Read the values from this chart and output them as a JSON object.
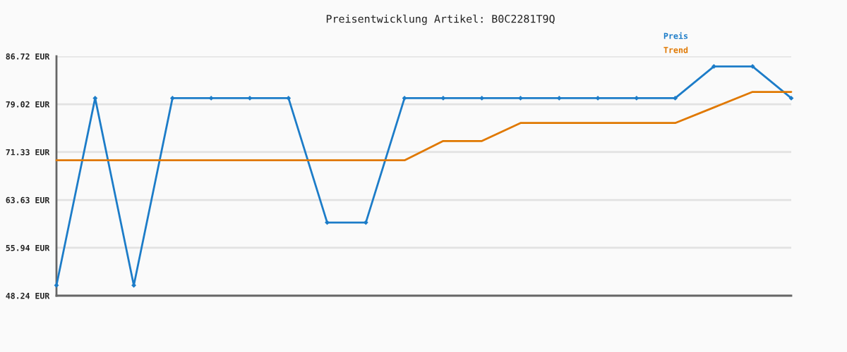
{
  "chart_data": {
    "type": "line",
    "title": "Preisentwicklung Artikel: B0C2281T9Q",
    "categories": [
      null,
      null,
      null,
      null,
      null,
      null,
      null,
      null,
      null,
      null,
      null,
      null,
      null,
      null,
      null,
      null,
      null,
      null,
      null,
      null
    ],
    "series": [
      {
        "name": "Preis",
        "color": "#1c7cc8",
        "marker": "diamond",
        "values": [
          49.9,
          80.0,
          49.9,
          80.0,
          80.0,
          80.0,
          80.0,
          60.0,
          60.0,
          80.0,
          80.0,
          80.0,
          80.0,
          80.0,
          80.0,
          80.0,
          80.0,
          85.1,
          85.1,
          80.0
        ]
      },
      {
        "name": "Trend",
        "color": "#e07800",
        "values": [
          70.0,
          70.0,
          70.0,
          70.0,
          70.0,
          70.0,
          70.0,
          70.0,
          70.0,
          70.0,
          73.1,
          73.1,
          76.0,
          76.0,
          76.0,
          76.0,
          76.0,
          78.5,
          81.0,
          81.0
        ]
      }
    ],
    "ylim": [
      48.24,
      86.72
    ],
    "yticks": [
      {
        "value": 48.24,
        "label": "48.24 EUR"
      },
      {
        "value": 55.94,
        "label": "55.94 EUR"
      },
      {
        "value": 63.63,
        "label": "63.63 EUR"
      },
      {
        "value": 71.33,
        "label": "71.33 EUR"
      },
      {
        "value": 79.02,
        "label": "79.02 EUR"
      },
      {
        "value": 86.72,
        "label": "86.72 EUR"
      }
    ],
    "grid": "y",
    "legend": "top right",
    "tick_labels": "y"
  }
}
